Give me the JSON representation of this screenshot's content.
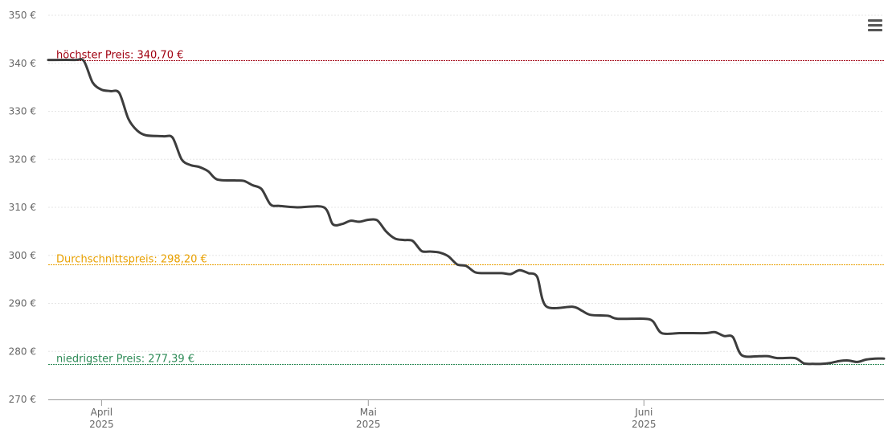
{
  "chart_data": {
    "type": "line",
    "title": "",
    "xlabel": "",
    "ylabel": "",
    "currency_suffix": " €",
    "ylim": [
      270,
      350
    ],
    "yticks": [
      270,
      280,
      290,
      300,
      310,
      320,
      330,
      340,
      350
    ],
    "xlim": [
      "2025-03-26",
      "2025-06-28"
    ],
    "xticks": [
      {
        "date": "2025-04-01",
        "month": "April",
        "year": "2025"
      },
      {
        "date": "2025-05-01",
        "month": "Mai",
        "year": "2025"
      },
      {
        "date": "2025-06-01",
        "month": "Juni",
        "year": "2025"
      }
    ],
    "grid": true,
    "series": [
      {
        "color": "#3d3d3d",
        "points": [
          [
            "2025-03-26",
            340.7
          ],
          [
            "2025-03-29",
            340.7
          ],
          [
            "2025-03-30",
            340.5
          ],
          [
            "2025-03-31",
            336.0
          ],
          [
            "2025-04-01",
            334.5
          ],
          [
            "2025-04-02",
            334.2
          ],
          [
            "2025-04-03",
            333.8
          ],
          [
            "2025-04-04",
            328.5
          ],
          [
            "2025-04-05",
            326.0
          ],
          [
            "2025-04-06",
            325.0
          ],
          [
            "2025-04-08",
            324.8
          ],
          [
            "2025-04-09",
            324.5
          ],
          [
            "2025-04-10",
            320.0
          ],
          [
            "2025-04-11",
            318.8
          ],
          [
            "2025-04-12",
            318.4
          ],
          [
            "2025-04-13",
            317.5
          ],
          [
            "2025-04-14",
            315.8
          ],
          [
            "2025-04-16",
            315.6
          ],
          [
            "2025-04-17",
            315.5
          ],
          [
            "2025-04-18",
            314.6
          ],
          [
            "2025-04-19",
            313.8
          ],
          [
            "2025-04-20",
            310.6
          ],
          [
            "2025-04-21",
            310.3
          ],
          [
            "2025-04-23",
            310.0
          ],
          [
            "2025-04-26",
            310.0
          ],
          [
            "2025-04-27",
            306.5
          ],
          [
            "2025-04-28",
            306.5
          ],
          [
            "2025-04-29",
            307.2
          ],
          [
            "2025-04-30",
            307.0
          ],
          [
            "2025-05-01",
            307.4
          ],
          [
            "2025-05-02",
            307.3
          ],
          [
            "2025-05-03",
            305.0
          ],
          [
            "2025-05-04",
            303.5
          ],
          [
            "2025-05-05",
            303.2
          ],
          [
            "2025-05-06",
            303.0
          ],
          [
            "2025-05-07",
            300.9
          ],
          [
            "2025-05-08",
            300.8
          ],
          [
            "2025-05-09",
            300.6
          ],
          [
            "2025-05-10",
            299.8
          ],
          [
            "2025-05-11",
            298.1
          ],
          [
            "2025-05-12",
            297.8
          ],
          [
            "2025-05-13",
            296.5
          ],
          [
            "2025-05-14",
            296.3
          ],
          [
            "2025-05-16",
            296.3
          ],
          [
            "2025-05-17",
            296.1
          ],
          [
            "2025-05-18",
            296.9
          ],
          [
            "2025-05-19",
            296.3
          ],
          [
            "2025-05-20",
            295.5
          ],
          [
            "2025-05-21",
            289.4
          ],
          [
            "2025-05-24",
            289.3
          ],
          [
            "2025-05-25",
            288.5
          ],
          [
            "2025-05-26",
            287.6
          ],
          [
            "2025-05-28",
            287.4
          ],
          [
            "2025-05-29",
            286.8
          ],
          [
            "2025-06-01",
            286.8
          ],
          [
            "2025-06-02",
            286.3
          ],
          [
            "2025-06-03",
            283.8
          ],
          [
            "2025-06-05",
            283.8
          ],
          [
            "2025-06-06",
            283.8
          ],
          [
            "2025-06-08",
            283.8
          ],
          [
            "2025-06-09",
            284.0
          ],
          [
            "2025-06-10",
            283.2
          ],
          [
            "2025-06-11",
            283.0
          ],
          [
            "2025-06-12",
            279.2
          ],
          [
            "2025-06-14",
            279.0
          ],
          [
            "2025-06-15",
            279.0
          ],
          [
            "2025-06-16",
            278.6
          ],
          [
            "2025-06-18",
            278.6
          ],
          [
            "2025-06-19",
            277.5
          ],
          [
            "2025-06-20",
            277.4
          ],
          [
            "2025-06-21",
            277.4
          ],
          [
            "2025-06-22",
            277.6
          ],
          [
            "2025-06-23",
            278.0
          ],
          [
            "2025-06-24",
            278.1
          ],
          [
            "2025-06-25",
            277.8
          ],
          [
            "2025-06-26",
            278.3
          ],
          [
            "2025-06-27",
            278.5
          ],
          [
            "2025-06-28",
            278.5
          ]
        ]
      }
    ],
    "reference_lines": [
      {
        "id": "max",
        "label": "höchster Preis: 340,70 €",
        "value": 340.7,
        "color": "#a00010"
      },
      {
        "id": "avg",
        "label": "Durchschnittspreis: 298,20 €",
        "value": 298.2,
        "color": "#e8a000"
      },
      {
        "id": "min",
        "label": "niedrigster Preis: 277,39 €",
        "value": 277.39,
        "color": "#2e8b57"
      }
    ]
  }
}
